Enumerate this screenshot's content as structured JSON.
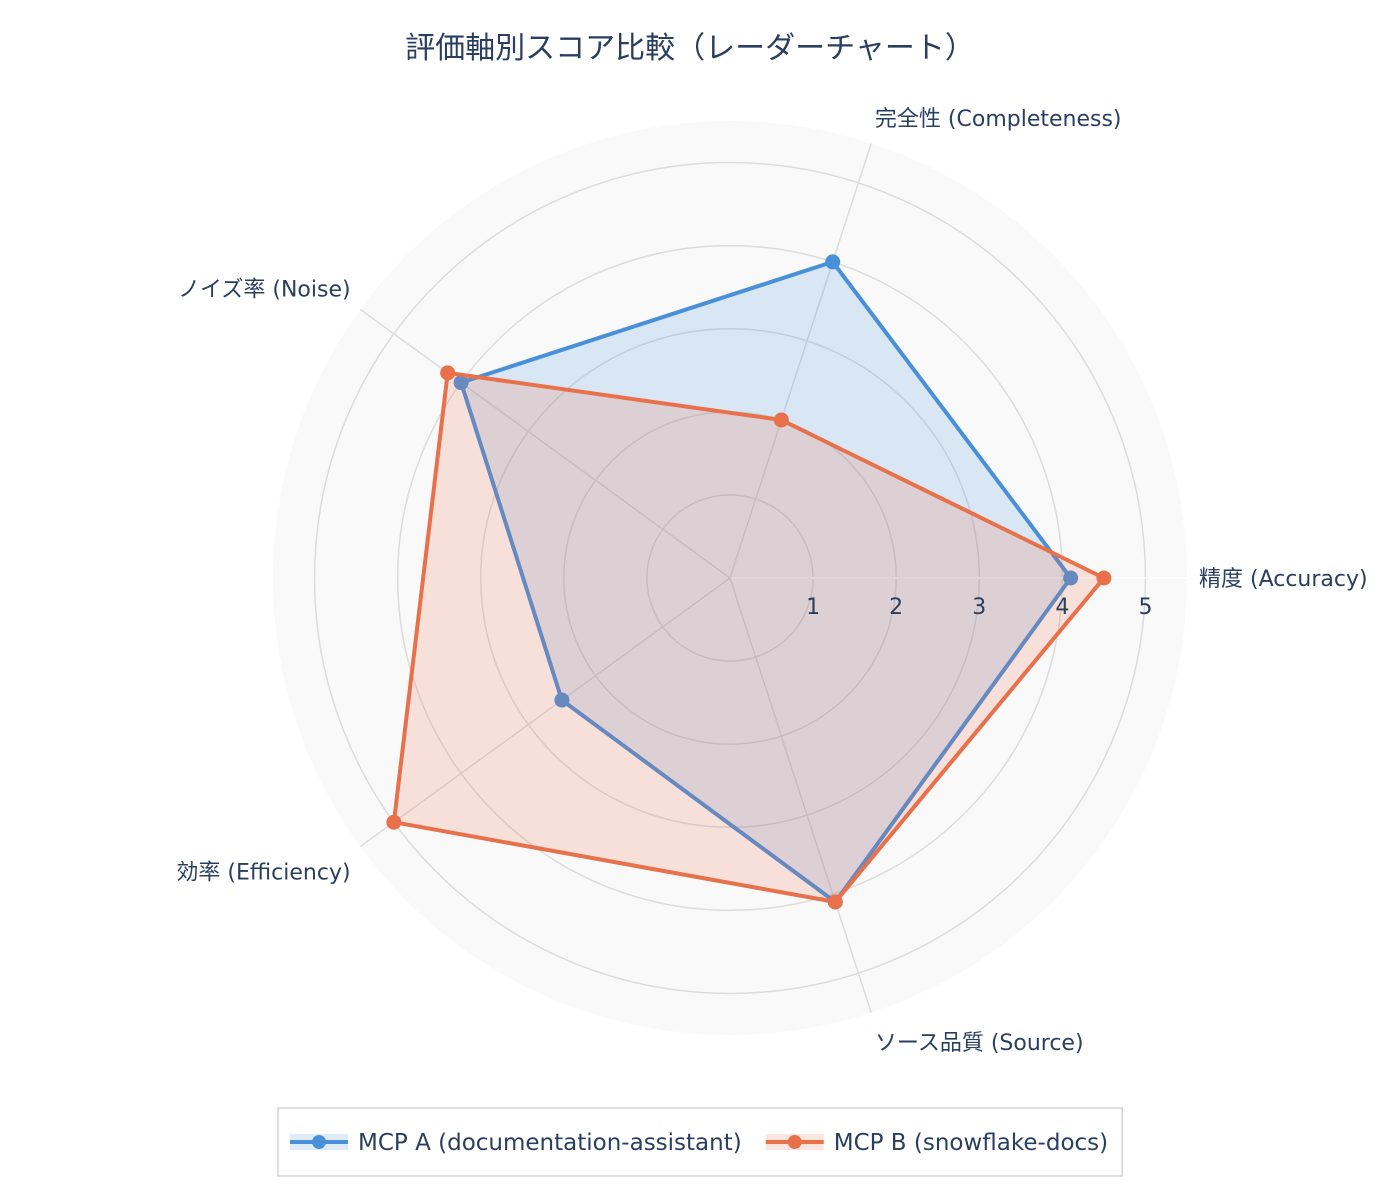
{
  "chart_data": {
    "type": "radar",
    "title": "評価軸別スコア比較（レーダーチャート）",
    "axes": [
      "精度 (Accuracy)",
      "完全性 (Completeness)",
      "ノイズ率 (Noise)",
      "効率 (Efficiency)",
      "ソース品質 (Source)"
    ],
    "radial_range": [
      0,
      5
    ],
    "radial_ticks": [
      "1",
      "2",
      "3",
      "4",
      "5"
    ],
    "series": [
      {
        "name": "MCP A (documentation-assistant)",
        "values": [
          4.1,
          4.0,
          4.0,
          2.5,
          4.1
        ],
        "color": "#4a90d9",
        "fill": "rgba(74,144,217,0.18)"
      },
      {
        "name": "MCP B (snowflake-docs)",
        "values": [
          4.5,
          2.0,
          4.2,
          5.0,
          4.1
        ],
        "color": "#e8704a",
        "fill": "rgba(232,112,74,0.18)"
      }
    ],
    "legend_position": "bottom",
    "grid": true
  }
}
